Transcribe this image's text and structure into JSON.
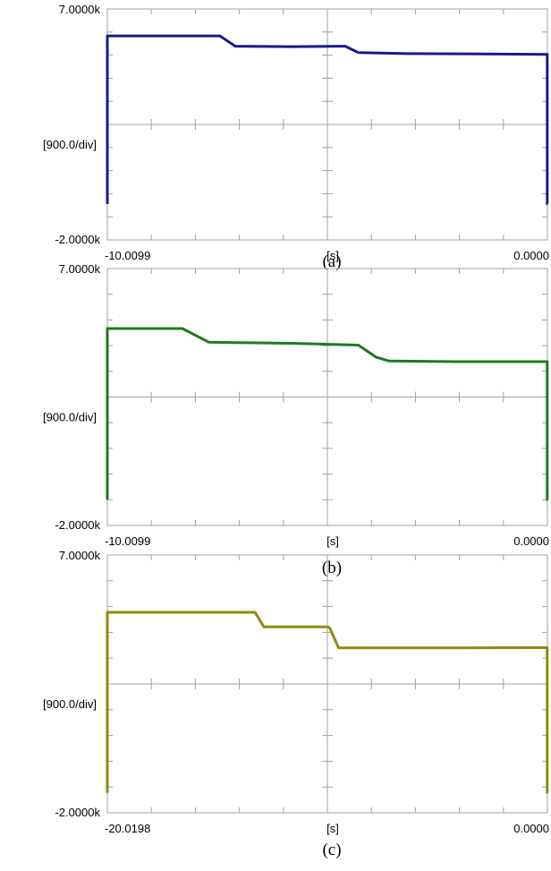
{
  "chart_data": [
    {
      "type": "line",
      "caption": "(a)",
      "y_top_label": "7.0000k",
      "y_bottom_label": "-2.0000k",
      "y_scale_label": "[900.0/div]",
      "x_left_label": "-10.0099",
      "x_unit_label": "[s]",
      "x_right_label": "0.0000",
      "xlim": [
        -10.0099,
        0
      ],
      "ylim": [
        -2000,
        7000
      ],
      "grid": "crosshair with ticks",
      "color": "#1a1a8c",
      "series": [
        {
          "x": [
            -10.0099,
            -10.0099,
            -7.45,
            -7.1,
            -5.8,
            -4.6,
            -4.3,
            -3.2,
            -1.5,
            -0.005,
            -0.005,
            0
          ],
          "y": [
            -600,
            5950,
            5950,
            5550,
            5530,
            5550,
            5300,
            5260,
            5250,
            5230,
            -600,
            -600
          ]
        }
      ]
    },
    {
      "type": "line",
      "caption": "(b)",
      "y_top_label": "7.0000k",
      "y_bottom_label": "-2.0000k",
      "y_scale_label": "[900.0/div]",
      "x_left_label": "-10.0099",
      "x_unit_label": "[s]",
      "x_right_label": "0.0000",
      "xlim": [
        -10.0099,
        0
      ],
      "ylim": [
        -2000,
        7000
      ],
      "grid": "crosshair with ticks",
      "color": "#1e7a1e",
      "series": [
        {
          "x": [
            -10.0099,
            -10.0099,
            -8.3,
            -7.7,
            -5.8,
            -4.3,
            -3.9,
            -3.6,
            -2.0,
            -0.005,
            -0.005,
            0
          ],
          "y": [
            -1100,
            4900,
            4900,
            4420,
            4380,
            4320,
            3900,
            3760,
            3740,
            3740,
            -1100,
            -1100
          ]
        }
      ]
    },
    {
      "type": "line",
      "caption": "(c)",
      "y_top_label": "7.0000k",
      "y_bottom_label": "-2.0000k",
      "y_scale_label": "[900.0/div]",
      "x_left_label": "-20.0198",
      "x_unit_label": "[s]",
      "x_right_label": "0.0000",
      "xlim": [
        -20.0198,
        0
      ],
      "ylim": [
        -2000,
        7000
      ],
      "grid": "crosshair with ticks",
      "color": "#8c8c14",
      "series": [
        {
          "x": [
            -20.0198,
            -20.0198,
            -13.3,
            -12.9,
            -10.0,
            -9.9,
            -9.5,
            -4.0,
            -0.01,
            -0.01,
            0
          ],
          "y": [
            -1300,
            5000,
            5000,
            4490,
            4490,
            4450,
            3760,
            3760,
            3770,
            -1300,
            -1300
          ]
        }
      ]
    }
  ]
}
